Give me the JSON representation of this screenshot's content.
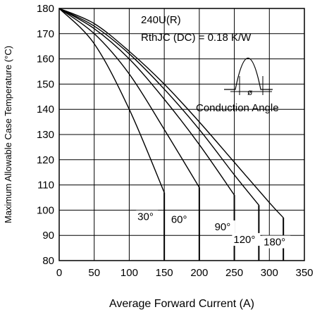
{
  "chart_data": {
    "type": "line",
    "xlabel": "Average Forward Current (A)",
    "ylabel": "Maximum Allowable Case Temperature (°C)",
    "xlim": [
      0,
      350
    ],
    "ylim": [
      80,
      180
    ],
    "xticks": [
      "0",
      "50",
      "100",
      "150",
      "200",
      "250",
      "300",
      "350"
    ],
    "yticks": [
      "80",
      "90",
      "100",
      "110",
      "120",
      "130",
      "140",
      "150",
      "160",
      "170",
      "180"
    ],
    "grid": true,
    "annotations": {
      "device": "240U(R)",
      "rth": "RthJC (DC) = 0.18 K/W",
      "conduction": "Conduction Angle",
      "phi": "ø"
    },
    "series": [
      {
        "name": "30°",
        "x": [
          0,
          50,
          100,
          150
        ],
        "y": [
          180,
          166,
          140,
          107
        ],
        "end_x": 150
      },
      {
        "name": "60°",
        "x": [
          0,
          50,
          100,
          150,
          200
        ],
        "y": [
          180,
          170,
          154,
          132,
          109
        ],
        "end_x": 200
      },
      {
        "name": "90°",
        "x": [
          0,
          50,
          100,
          150,
          200,
          250
        ],
        "y": [
          180,
          172,
          160,
          144,
          126,
          106
        ],
        "end_x": 250
      },
      {
        "name": "120°",
        "x": [
          0,
          50,
          100,
          150,
          200,
          250,
          285
        ],
        "y": [
          180,
          173,
          162,
          148,
          132,
          114,
          102
        ],
        "end_x": 285
      },
      {
        "name": "180°",
        "x": [
          0,
          50,
          100,
          150,
          200,
          250,
          300,
          320
        ],
        "y": [
          180,
          174,
          163,
          150,
          135,
          119,
          103,
          97
        ],
        "end_x": 320
      }
    ]
  }
}
